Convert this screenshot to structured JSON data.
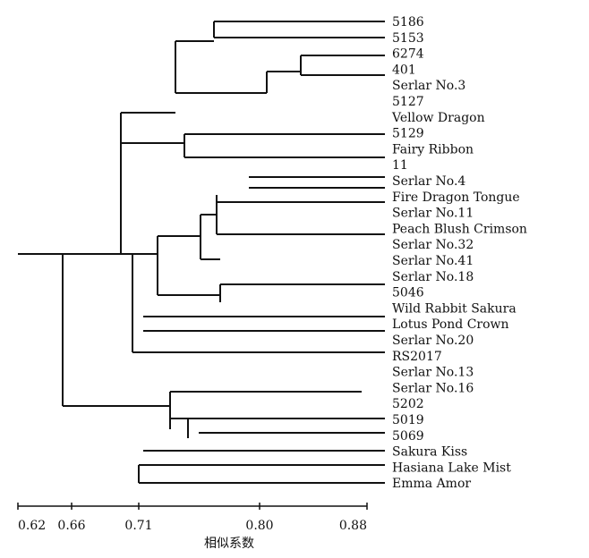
{
  "figure": {
    "type": "dendrogram",
    "axis_title": "相似系数",
    "axis": {
      "range": [
        0.62,
        0.88
      ],
      "ticks": [
        {
          "value": 0.62,
          "label": "0.62"
        },
        {
          "value": 0.66,
          "label": "0.66"
        },
        {
          "value": 0.71,
          "label": "0.71"
        },
        {
          "value": 0.8,
          "label": "0.80"
        },
        {
          "value": 0.88,
          "label": "0.88"
        }
      ]
    },
    "leaves": [
      "5186",
      "5153",
      "6274",
      "401",
      "Serlar No.3",
      "5127",
      "Vellow Dragon",
      "5129",
      "Fairy Ribbon",
      "11",
      "Serlar No.4",
      "Fire Dragon Tongue",
      "Serlar No.11",
      "Peach Blush Crimson",
      "Serlar No.32",
      "Serlar No.41",
      "Serlar No.18",
      "5046",
      "Wild Rabbit Sakura",
      "Lotus Pond Crown",
      "Serlar No.20",
      "RS2017",
      "Serlar No.13",
      "Serlar No.16",
      "5202",
      "5019",
      "5069",
      "Sakura Kiss",
      "Hasiana Lake Mist",
      "Emma Amor"
    ]
  }
}
